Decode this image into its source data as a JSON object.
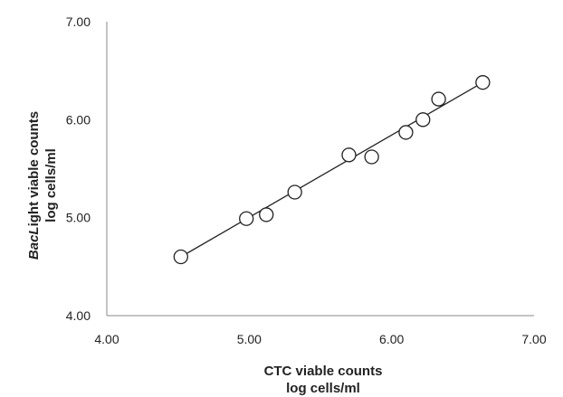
{
  "chart_data": {
    "type": "scatter",
    "x_label_line1": "CTC viable counts",
    "x_label_line2": "log cells/ml",
    "y_label_line1_italic": "BacL",
    "y_label_line1_rest": "ight viable counts",
    "y_label_line2": "log cells/ml",
    "xlim": [
      4.0,
      7.0
    ],
    "ylim": [
      4.0,
      7.0
    ],
    "x_ticks": [
      "4.00",
      "5.00",
      "6.00",
      "7.00"
    ],
    "y_ticks": [
      "4.00",
      "5.00",
      "6.00",
      "7.00"
    ],
    "points": [
      {
        "x": 4.52,
        "y": 4.6
      },
      {
        "x": 4.98,
        "y": 4.99
      },
      {
        "x": 5.12,
        "y": 5.03
      },
      {
        "x": 5.32,
        "y": 5.26
      },
      {
        "x": 5.7,
        "y": 5.64
      },
      {
        "x": 5.86,
        "y": 5.62
      },
      {
        "x": 6.1,
        "y": 5.87
      },
      {
        "x": 6.22,
        "y": 6.0
      },
      {
        "x": 6.33,
        "y": 6.21
      },
      {
        "x": 6.64,
        "y": 6.38
      }
    ],
    "fit_line": {
      "x1": 4.52,
      "y1": 4.6,
      "x2": 6.64,
      "y2": 6.38
    },
    "grid": false,
    "legend": "none"
  }
}
